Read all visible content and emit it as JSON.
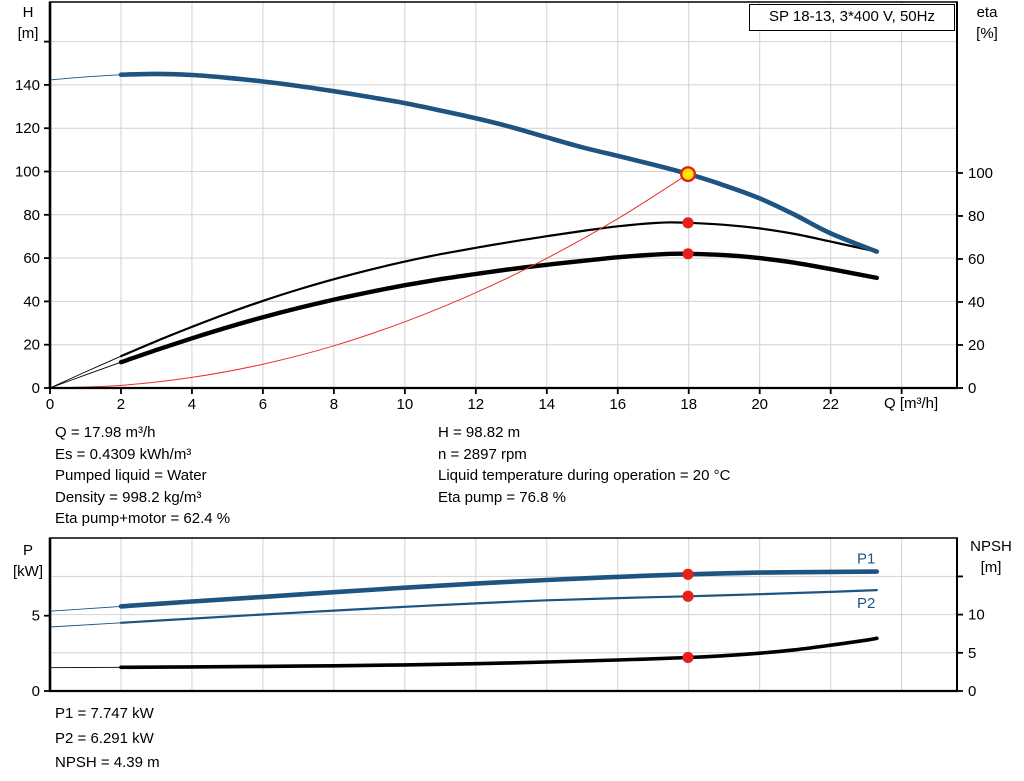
{
  "axis_display": {
    "h": [
      "H",
      "[m]"
    ],
    "eta": [
      "eta",
      "[%]"
    ],
    "p": [
      "P",
      "[kW]"
    ],
    "npsh": [
      "NPSH",
      "[m]"
    ]
  },
  "info": {
    "left": [
      "Q = 17.98 m³/h",
      "Es = 0.4309 kWh/m³",
      "Pumped liquid = Water",
      "Density = 998.2 kg/m³",
      "Eta pump+motor = 62.4 %"
    ],
    "right": [
      "H = 98.82 m",
      "n = 2897 rpm",
      "Liquid temperature during operation = 20 °C",
      "Eta pump = 76.8 %"
    ]
  },
  "results": [
    "P1 = 7.747 kW",
    "P2 = 6.291 kW",
    "NPSH = 4.39 m"
  ],
  "colors": {
    "curve_blue": "#1d5482",
    "curve_black": "#000000",
    "curve_red": "#e8312a",
    "marker_red": "#e8201a",
    "marker_yellow": "#ffe508",
    "grid": "#d2d2d2",
    "axis": "#000000"
  },
  "chart_data": [
    {
      "id": "head-chart",
      "type": "line",
      "title": "SP 18-13, 3*400 V, 50Hz",
      "x_axis": {
        "label": "Q [m³/h]",
        "min": 0,
        "max": 25.56,
        "tick_labels": [
          0,
          2,
          4,
          6,
          8,
          10,
          12,
          14,
          16,
          18,
          20,
          22
        ],
        "extra_ticks": [
          24
        ],
        "grid_lines": [
          2,
          4,
          6,
          8,
          10,
          12,
          14,
          16,
          18,
          20,
          22,
          24
        ]
      },
      "y_left": {
        "label": "H [m]",
        "min": 0,
        "max": 178.3,
        "tick_labels": [
          0,
          20,
          40,
          60,
          80,
          100,
          120,
          140
        ],
        "extra_ticks": [
          160
        ],
        "grid_lines": [
          20,
          40,
          60,
          80,
          100,
          120,
          140,
          160
        ],
        "top_end_tick": false
      },
      "y_right": {
        "label": "eta [%]",
        "min": 0,
        "max": 179.5,
        "tick_labels": [
          0,
          20,
          40,
          60,
          80,
          100
        ],
        "extra_ticks": [],
        "grid_lines": [],
        "top_end_tick": false
      },
      "series": [
        {
          "name": "eta-pump-motor-curve",
          "axis": "right",
          "color": "curve_black",
          "width": 4.4,
          "thin_until": 2,
          "points": [
            [
              0,
              0
            ],
            [
              1,
              6.1
            ],
            [
              2,
              12.0
            ],
            [
              3,
              17.7
            ],
            [
              4,
              23.1
            ],
            [
              5,
              28.2
            ],
            [
              6,
              32.9
            ],
            [
              7,
              37.2
            ],
            [
              8,
              41.1
            ],
            [
              9,
              44.6
            ],
            [
              10,
              47.8
            ],
            [
              11,
              50.6
            ],
            [
              12,
              53.0
            ],
            [
              13,
              55.3
            ],
            [
              14,
              57.3
            ],
            [
              15,
              59.1
            ],
            [
              16,
              60.8
            ],
            [
              17,
              62.0
            ],
            [
              17.5,
              62.4
            ],
            [
              18,
              62.4
            ],
            [
              19,
              61.8
            ],
            [
              20,
              60.4
            ],
            [
              21,
              58.2
            ],
            [
              22,
              55.3
            ],
            [
              23.3,
              51.2
            ]
          ]
        },
        {
          "name": "eta-pump-curve",
          "axis": "right",
          "color": "curve_black",
          "width": 2.2,
          "thin_until": 2,
          "points": [
            [
              0,
              0
            ],
            [
              1,
              7.5
            ],
            [
              2,
              14.8
            ],
            [
              3,
              21.8
            ],
            [
              4,
              28.4
            ],
            [
              5,
              34.7
            ],
            [
              6,
              40.5
            ],
            [
              7,
              45.8
            ],
            [
              8,
              50.6
            ],
            [
              9,
              54.9
            ],
            [
              10,
              58.8
            ],
            [
              11,
              62.2
            ],
            [
              12,
              65.2
            ],
            [
              13,
              68.0
            ],
            [
              14,
              70.6
            ],
            [
              15,
              73.0
            ],
            [
              16,
              75.2
            ],
            [
              17,
              76.7
            ],
            [
              17.5,
              77.0
            ],
            [
              18,
              76.8
            ],
            [
              19,
              75.9
            ],
            [
              20,
              74.2
            ],
            [
              21,
              71.6
            ],
            [
              22,
              68.1
            ],
            [
              23.3,
              63.4
            ]
          ]
        },
        {
          "name": "system-curve",
          "axis": "left",
          "color": "curve_red",
          "width": 1,
          "thin_until": 0,
          "points": [
            [
              0,
              0
            ],
            [
              2,
              1.2
            ],
            [
              4,
              4.9
            ],
            [
              6,
              11.0
            ],
            [
              8,
              19.5
            ],
            [
              10,
              30.6
            ],
            [
              12,
              44.0
            ],
            [
              14,
              59.9
            ],
            [
              16,
              78.2
            ],
            [
              17.98,
              98.82
            ]
          ]
        },
        {
          "name": "pump-head-curve",
          "axis": "left",
          "color": "curve_blue",
          "width": 4.6,
          "thin_until": 2,
          "points": [
            [
              0,
              142.3
            ],
            [
              1,
              143.7
            ],
            [
              2,
              144.7
            ],
            [
              3,
              145.1
            ],
            [
              4,
              144.6
            ],
            [
              5,
              143.3
            ],
            [
              6,
              141.6
            ],
            [
              7,
              139.5
            ],
            [
              8,
              137.1
            ],
            [
              9,
              134.4
            ],
            [
              10,
              131.6
            ],
            [
              11,
              128.2
            ],
            [
              12,
              124.6
            ],
            [
              13,
              120.5
            ],
            [
              14,
              115.8
            ],
            [
              15,
              111.2
            ],
            [
              16,
              107.2
            ],
            [
              17,
              103.2
            ],
            [
              18,
              98.8
            ],
            [
              19,
              93.6
            ],
            [
              20,
              87.6
            ],
            [
              21,
              79.9
            ],
            [
              22,
              71.4
            ],
            [
              23.3,
              63.0
            ]
          ]
        }
      ],
      "markers": [
        {
          "name": "duty-point",
          "q": 17.98,
          "v": 98.82,
          "axis": "left",
          "style": "duty"
        },
        {
          "name": "eta-pump-point",
          "q": 17.98,
          "v": 76.8,
          "axis": "right",
          "style": "dot"
        },
        {
          "name": "eta-pump-motor-point",
          "q": 17.98,
          "v": 62.4,
          "axis": "right",
          "style": "dot"
        }
      ],
      "series_labels": []
    },
    {
      "id": "power-chart",
      "type": "line",
      "title": "",
      "x_axis": {
        "label": "",
        "min": 0,
        "max": 25.56,
        "tick_labels": [],
        "extra_ticks": [],
        "grid_lines": [
          2,
          4,
          6,
          8,
          10,
          12,
          14,
          16,
          18,
          20,
          22,
          24
        ]
      },
      "y_left": {
        "label": "P [kW]",
        "min": 0,
        "max": 10.16,
        "tick_labels": [
          0,
          5
        ],
        "extra_ticks": [],
        "grid_lines": [],
        "top_end_tick": true
      },
      "y_right": {
        "label": "NPSH [m]",
        "min": 0,
        "max": 20.03,
        "tick_labels": [
          0,
          5,
          10
        ],
        "extra_ticks": [
          15
        ],
        "grid_lines": [
          5,
          10,
          15
        ],
        "top_end_tick": true
      },
      "series": [
        {
          "name": "p1-curve",
          "axis": "left",
          "color": "curve_blue",
          "width": 4.6,
          "thin_until": 2,
          "points": [
            [
              0,
              5.3
            ],
            [
              2,
              5.62
            ],
            [
              4,
              5.94
            ],
            [
              6,
              6.25
            ],
            [
              8,
              6.56
            ],
            [
              10,
              6.86
            ],
            [
              12,
              7.13
            ],
            [
              14,
              7.37
            ],
            [
              16,
              7.58
            ],
            [
              18,
              7.75
            ],
            [
              20,
              7.86
            ],
            [
              22,
              7.91
            ],
            [
              23.3,
              7.93
            ]
          ]
        },
        {
          "name": "p2-curve",
          "axis": "left",
          "color": "curve_blue",
          "width": 2.2,
          "thin_until": 2,
          "points": [
            [
              0,
              4.25
            ],
            [
              2,
              4.53
            ],
            [
              4,
              4.81
            ],
            [
              6,
              5.08
            ],
            [
              8,
              5.34
            ],
            [
              10,
              5.59
            ],
            [
              12,
              5.82
            ],
            [
              14,
              6.02
            ],
            [
              16,
              6.17
            ],
            [
              18,
              6.29
            ],
            [
              20,
              6.43
            ],
            [
              22,
              6.58
            ],
            [
              23.3,
              6.7
            ]
          ]
        },
        {
          "name": "npsh-curve",
          "axis": "right",
          "color": "curve_black",
          "width": 3.6,
          "thin_until": 2,
          "points": [
            [
              0,
              3.05
            ],
            [
              2,
              3.1
            ],
            [
              4,
              3.16
            ],
            [
              6,
              3.22
            ],
            [
              8,
              3.3
            ],
            [
              10,
              3.42
            ],
            [
              12,
              3.58
            ],
            [
              14,
              3.8
            ],
            [
              16,
              4.06
            ],
            [
              18,
              4.39
            ],
            [
              19,
              4.62
            ],
            [
              20,
              4.95
            ],
            [
              21,
              5.4
            ],
            [
              22,
              6.0
            ],
            [
              23,
              6.65
            ],
            [
              23.3,
              6.9
            ]
          ]
        }
      ],
      "markers": [
        {
          "name": "p1-point",
          "q": 17.98,
          "v": 7.747,
          "axis": "left",
          "style": "dot"
        },
        {
          "name": "p2-point",
          "q": 17.98,
          "v": 6.291,
          "axis": "left",
          "style": "dot"
        },
        {
          "name": "npsh-point",
          "q": 17.98,
          "v": 4.39,
          "axis": "right",
          "style": "dot"
        }
      ],
      "series_labels": [
        {
          "text": "P1",
          "q": 23.0,
          "v": 8.8
        },
        {
          "text": "P2",
          "q": 23.0,
          "v": 5.85
        }
      ]
    }
  ]
}
